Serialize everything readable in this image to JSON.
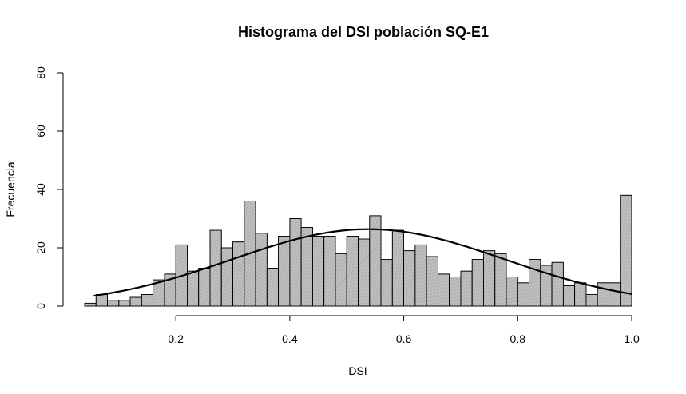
{
  "chart_data": {
    "type": "bar",
    "title": "Histograma del DSI población SQ-E1",
    "xlabel": "DSI",
    "ylabel": "Frecuencia",
    "xlim": [
      0.04,
      1.0
    ],
    "ylim": [
      0,
      80
    ],
    "xticks": [
      0.2,
      0.4,
      0.6,
      0.8,
      1.0
    ],
    "xtick_labels": [
      "0.2",
      "0.4",
      "0.6",
      "0.8",
      "1.0"
    ],
    "yticks": [
      0,
      20,
      40,
      60,
      80
    ],
    "ytick_labels": [
      "0",
      "20",
      "40",
      "60",
      "80"
    ],
    "bin_width": 0.02,
    "bin_start": 0.04,
    "counts": [
      1,
      4,
      2,
      2,
      3,
      4,
      9,
      11,
      21,
      12,
      13,
      26,
      20,
      22,
      36,
      25,
      13,
      24,
      30,
      27,
      24,
      24,
      18,
      24,
      23,
      31,
      16,
      26,
      19,
      21,
      17,
      11,
      10,
      12,
      16,
      19,
      18,
      10,
      8,
      16,
      14,
      15,
      7,
      8,
      4,
      8,
      8,
      38
    ],
    "normal_curve": {
      "mean": 0.538,
      "sd": 0.24,
      "scale": 15.87,
      "range": [
        0.056,
        1.0
      ]
    },
    "bar_fill": "#c0c0c0",
    "bar_stroke": "#000000",
    "curve_color": "#000000",
    "grid": false
  }
}
